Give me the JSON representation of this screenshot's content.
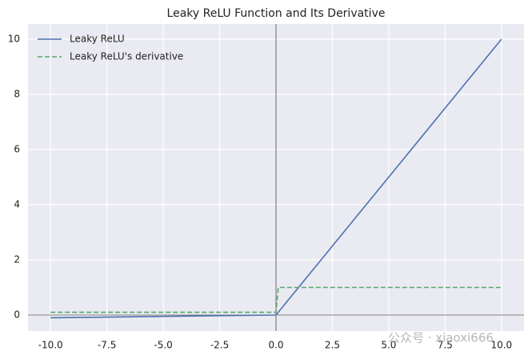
{
  "chart_data": {
    "type": "line",
    "title": "Leaky ReLU Function and Its Derivative",
    "x": [
      -10,
      0,
      0.1,
      10
    ],
    "series": [
      {
        "name": "Leaky ReLU",
        "color": "#4c72b0",
        "dash": false,
        "values": [
          -0.1,
          0,
          0.1,
          10
        ]
      },
      {
        "name": "Leaky ReLU's derivative",
        "color": "#55a868",
        "dash": true,
        "values": [
          0.1,
          0.1,
          1,
          1
        ]
      }
    ],
    "xlim": [
      -11,
      11
    ],
    "ylim": [
      -0.58,
      10.55
    ],
    "xticks": [
      {
        "value": -10,
        "label": "-10.0"
      },
      -7.5,
      {
        "value": -5,
        "label": "-5.0"
      },
      -2.5,
      {
        "value": 0,
        "label": "0.0"
      },
      2.5,
      {
        "value": 5,
        "label": "5.0"
      },
      7.5,
      {
        "value": 10,
        "label": "10.0"
      }
    ],
    "yticks": [
      0,
      2,
      4,
      6,
      8,
      10
    ],
    "axhline": 0,
    "axvline": 0,
    "grid": true,
    "legend": "upper left",
    "watermark": "公众号 · xiaoxi666"
  }
}
